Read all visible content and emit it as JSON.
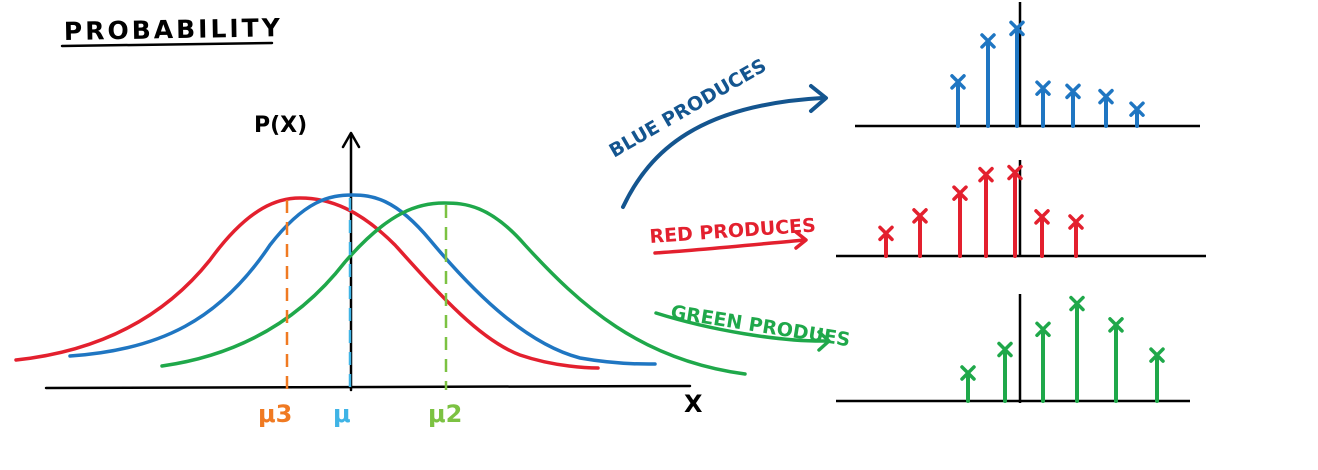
{
  "title": "PROBABILITY",
  "y_axis_label": "P(X)",
  "x_axis_label": "X",
  "means": [
    {
      "label": "μ3",
      "color": "#f07a22"
    },
    {
      "label": "μ",
      "color": "#3fb4e6"
    },
    {
      "label": "μ2",
      "color": "#7cc242"
    }
  ],
  "arrows": [
    {
      "label": "BLUE PRODUCES",
      "color": "#14558f"
    },
    {
      "label": "RED PRODUCES",
      "color": "#e3202e"
    },
    {
      "label": "GREEN PRODUES",
      "color": "#1fa84a"
    }
  ],
  "colors": {
    "blue": "#1f76c2",
    "red": "#e3202e",
    "green": "#1fa84a",
    "ink": "#000000"
  },
  "stem_plots": {
    "blue": {
      "heights": [
        0.42,
        0.81,
        0.93,
        0.36,
        0.33,
        0.28,
        0.16
      ]
    },
    "red": {
      "heights": [
        0.22,
        0.39,
        0.61,
        0.79,
        0.81,
        0.38,
        0.33
      ]
    },
    "green": {
      "heights": [
        0.25,
        0.46,
        0.64,
        0.87,
        0.68,
        0.41
      ]
    }
  }
}
